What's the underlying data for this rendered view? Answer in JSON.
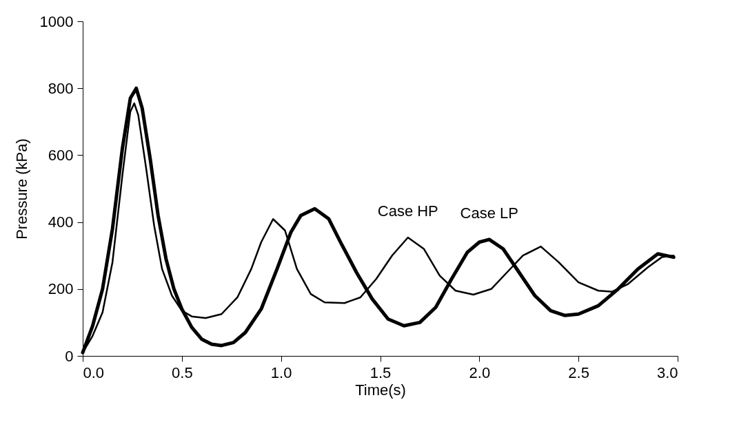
{
  "chart_data": {
    "type": "line",
    "xlabel": "Time(s)",
    "ylabel": "Pressure (kPa)",
    "xlim": [
      0,
      3
    ],
    "xticks": [
      {
        "value": 0,
        "label": "0.0"
      },
      0.5,
      {
        "value": 1,
        "label": "1.0"
      },
      1.5,
      {
        "value": 2,
        "label": "2.0"
      },
      2.5,
      {
        "value": 3,
        "label": "3.0"
      }
    ],
    "ylim": [
      0,
      1000
    ],
    "yticks": [
      0,
      200,
      400,
      600,
      800,
      1000
    ],
    "grid": false,
    "legend": false,
    "marker": "none",
    "line_style": "solid",
    "series": [
      {
        "name": "Case HP",
        "color": "#000000",
        "x": [
          0,
          0.05,
          0.1,
          0.15,
          0.2,
          0.24,
          0.26,
          0.28,
          0.32,
          0.36,
          0.4,
          0.45,
          0.5,
          0.55,
          0.62,
          0.7,
          0.78,
          0.85,
          0.9,
          0.96,
          1.02,
          1.08,
          1.15,
          1.22,
          1.32,
          1.4,
          1.48,
          1.56,
          1.64,
          1.72,
          1.8,
          1.88,
          1.97,
          2.06,
          2.14,
          2.22,
          2.31,
          2.4,
          2.5,
          2.6,
          2.67,
          2.75,
          2.85,
          2.92,
          2.98
        ],
        "values": [
          10,
          60,
          130,
          280,
          540,
          730,
          755,
          720,
          560,
          390,
          260,
          180,
          135,
          118,
          113,
          125,
          175,
          260,
          340,
          409,
          375,
          260,
          185,
          160,
          158,
          175,
          230,
          300,
          354,
          320,
          240,
          195,
          183,
          200,
          250,
          300,
          327,
          280,
          220,
          195,
          192,
          215,
          265,
          295,
          300
        ]
      },
      {
        "name": "Case LP",
        "color": "#000000",
        "x": [
          0,
          0.05,
          0.1,
          0.15,
          0.2,
          0.24,
          0.27,
          0.3,
          0.34,
          0.38,
          0.42,
          0.46,
          0.5,
          0.55,
          0.6,
          0.65,
          0.7,
          0.76,
          0.82,
          0.9,
          0.98,
          1.05,
          1.1,
          1.17,
          1.24,
          1.3,
          1.38,
          1.46,
          1.54,
          1.62,
          1.7,
          1.78,
          1.86,
          1.94,
          2.0,
          2.05,
          2.12,
          2.2,
          2.28,
          2.36,
          2.43,
          2.5,
          2.6,
          2.7,
          2.8,
          2.9,
          2.98
        ],
        "values": [
          10,
          90,
          200,
          380,
          620,
          770,
          800,
          740,
          590,
          420,
          290,
          200,
          140,
          85,
          50,
          35,
          31,
          40,
          70,
          140,
          260,
          370,
          420,
          440,
          410,
          340,
          250,
          170,
          110,
          90,
          100,
          145,
          230,
          310,
          340,
          348,
          320,
          250,
          180,
          135,
          121,
          125,
          150,
          200,
          260,
          305,
          295
        ]
      }
    ]
  }
}
